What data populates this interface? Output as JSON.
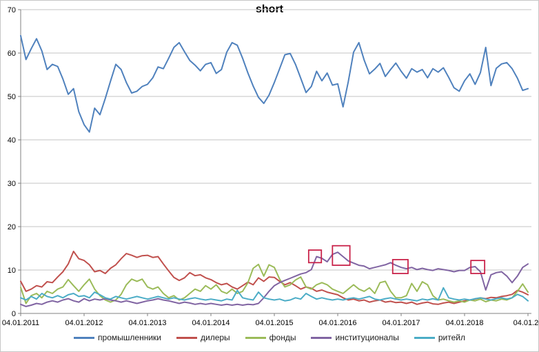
{
  "chart_data": {
    "type": "line",
    "title": "short",
    "xlabel": "",
    "ylabel": "",
    "ylim": [
      0,
      70
    ],
    "y_tick_step": 10,
    "y_tick_labels": [
      "0",
      "10",
      "20",
      "30",
      "40",
      "50",
      "60",
      "70"
    ],
    "x_tick_labels": [
      "04.01.2011",
      "04.01.2012",
      "04.01.2013",
      "04.01.2014",
      "04.01.2015",
      "04.01.2016",
      "04.01.2017",
      "04.01.2018",
      "04.01.20"
    ],
    "grid": "horizontal",
    "legend_position": "bottom",
    "colors": {
      "axis": "#808080",
      "grid": "#c3c3c3",
      "annotation": "#c9234a",
      "text": "#000000"
    },
    "months_span": 96,
    "series": [
      {
        "id": "promyshlenniki",
        "name": "промышленники",
        "color": "#4F81BD",
        "values": [
          64,
          58.5,
          61,
          63.3,
          60.5,
          56.2,
          57.4,
          56.9,
          54,
          50.5,
          51.8,
          46.5,
          43.5,
          41.8,
          47.3,
          45.8,
          49.5,
          53.5,
          57.4,
          56.2,
          53.2,
          50.8,
          51.2,
          52.3,
          52.8,
          54.3,
          56.8,
          56.4,
          58.8,
          61.3,
          62.4,
          60.3,
          58.3,
          57.2,
          55.9,
          57.4,
          57.8,
          55.3,
          56.2,
          60.2,
          62.4,
          61.8,
          58.8,
          55.4,
          52.4,
          49.8,
          48.4,
          50.3,
          53.2,
          56.4,
          59.6,
          59.9,
          57.4,
          54.2,
          50.9,
          52.3,
          55.8,
          53.6,
          55.4,
          52.6,
          52.9,
          47.6,
          53.4,
          60.2,
          62.4,
          58.4,
          55.2,
          56.3,
          57.6,
          54.6,
          56.2,
          57.7,
          55.8,
          54.2,
          56.4,
          55.6,
          56.2,
          54.3,
          56.4,
          55.6,
          56.6,
          54.4,
          52,
          51.2,
          53.6,
          55.2,
          52.8,
          55.5,
          61.3,
          52.5,
          56.5,
          57.5,
          57.8,
          56.4,
          54.2,
          51.4,
          51.8
        ]
      },
      {
        "id": "dilery",
        "name": "дилеры",
        "color": "#C0504D",
        "values": [
          7.4,
          5.1,
          5.6,
          6.4,
          6.1,
          7.3,
          7.1,
          8.4,
          9.6,
          11.4,
          14.3,
          12.6,
          12.2,
          11.2,
          9.6,
          9.9,
          9.2,
          10.4,
          11.2,
          12.6,
          13.8,
          13.4,
          12.9,
          13.3,
          13.4,
          12.9,
          13.1,
          11.4,
          9.8,
          8.3,
          7.6,
          8.2,
          9.4,
          8.7,
          8.9,
          8.2,
          7.8,
          7.1,
          6.6,
          6.9,
          6.1,
          5.6,
          6.4,
          7.2,
          6.6,
          8.2,
          7.4,
          8.4,
          8.3,
          7.4,
          6.6,
          7.1,
          6.4,
          5.6,
          6.1,
          5.8,
          5.1,
          5.4,
          4.9,
          4.6,
          4.3,
          3.6,
          3.1,
          3.3,
          2.9,
          3.1,
          2.6,
          2.9,
          3.1,
          2.6,
          2.8,
          2.5,
          2.6,
          2.3,
          2.6,
          2.1,
          2.4,
          2.6,
          2.2,
          2.1,
          2.4,
          2.6,
          2.3,
          2.6,
          2.9,
          3.1,
          3.3,
          3.6,
          3.4,
          3.7,
          3.6,
          3.9,
          4.1,
          4.4,
          5.3,
          4.9,
          4.3
        ]
      },
      {
        "id": "fondy",
        "name": "фонды",
        "color": "#9BBB59",
        "values": [
          6,
          2.3,
          4.1,
          4.6,
          3.6,
          5.1,
          4.6,
          5.6,
          6.1,
          7.8,
          6.4,
          5.1,
          6.6,
          7.9,
          5.6,
          4.1,
          3.1,
          2.6,
          3.1,
          4.4,
          6.6,
          7.9,
          7.4,
          7.9,
          6.1,
          5.6,
          6.1,
          4.6,
          3.6,
          4.1,
          3.1,
          3.6,
          4.6,
          5.6,
          5.1,
          6.4,
          5.6,
          6.6,
          5.1,
          4.6,
          5.6,
          4.6,
          5.1,
          7.1,
          10.4,
          11.3,
          8.6,
          11.2,
          10.6,
          7.9,
          6.1,
          6.6,
          7.7,
          8.4,
          6.1,
          5.6,
          6.6,
          7.1,
          6.6,
          5.6,
          5.1,
          4.6,
          5.6,
          6.6,
          5.6,
          5.1,
          5.9,
          4.6,
          7.1,
          7.4,
          5.1,
          3.6,
          3.6,
          4.1,
          6.9,
          5.1,
          7.3,
          6.6,
          4.1,
          3.1,
          3.3,
          2.9,
          2.6,
          2.9,
          2.6,
          3.1,
          2.9,
          3.3,
          2.7,
          3.1,
          2.9,
          3.3,
          3.1,
          3.6,
          5.1,
          6.8,
          4.9
        ]
      },
      {
        "id": "institutsionaly",
        "name": "институционалы",
        "color": "#8064A2",
        "values": [
          2.1,
          1.6,
          1.9,
          2.3,
          2.1,
          2.6,
          2.9,
          2.6,
          3.1,
          3.4,
          2.9,
          2.6,
          3.4,
          2.9,
          3.3,
          3.1,
          3.4,
          3.1,
          2.9,
          2.6,
          2.9,
          2.6,
          2.3,
          2.6,
          2.9,
          3.1,
          3.4,
          3.1,
          2.9,
          2.6,
          2.3,
          2.6,
          2.4,
          2.1,
          2.3,
          2.1,
          2.3,
          2.1,
          1.9,
          2.1,
          1.9,
          2.1,
          1.9,
          2.1,
          2,
          2.3,
          3.6,
          5.1,
          6.4,
          7.1,
          7.6,
          8.1,
          8.6,
          9.1,
          9.4,
          10.1,
          13.1,
          12.7,
          11.9,
          13.6,
          14.1,
          13.1,
          12.1,
          11.6,
          11.1,
          10.9,
          10.3,
          10.6,
          10.9,
          11.2,
          11.7,
          11.1,
          10.6,
          10.3,
          10.6,
          10.1,
          10.4,
          10.1,
          9.9,
          10.3,
          10.1,
          9.9,
          9.6,
          9.9,
          9.9,
          10.6,
          10.8,
          9.6,
          5.4,
          8.9,
          9.4,
          9.6,
          8.6,
          7.1,
          8.6,
          10.6,
          11.4
        ]
      },
      {
        "id": "riteyl",
        "name": "ритейл",
        "color": "#4BACC6",
        "values": [
          3.6,
          3.1,
          3.9,
          3.3,
          4.6,
          3.9,
          3.6,
          4.1,
          3.6,
          4.3,
          4.6,
          3.9,
          4.1,
          3.6,
          4.9,
          4.3,
          3.6,
          3.3,
          3.9,
          3.6,
          3.3,
          3.6,
          3.9,
          3.6,
          3.3,
          3.6,
          3.9,
          3.6,
          3.3,
          3.6,
          3.3,
          3.1,
          3.4,
          3.6,
          3.3,
          3.1,
          3.3,
          3.1,
          2.9,
          3.3,
          3.1,
          5.3,
          3.6,
          3.3,
          3.1,
          4.9,
          3.6,
          3.3,
          3.1,
          3.3,
          2.9,
          3.1,
          3.6,
          3.3,
          4.6,
          3.9,
          3.3,
          3.6,
          3.3,
          3.1,
          3.3,
          3.1,
          3.4,
          3.6,
          3.3,
          3.6,
          3.9,
          3.3,
          3.1,
          3.4,
          3.6,
          3.3,
          3.1,
          3.3,
          3.1,
          2.9,
          3.3,
          3.1,
          3.4,
          3.1,
          5.9,
          3.6,
          3.3,
          3.1,
          3.3,
          3.1,
          3.4,
          3.6,
          3.3,
          3.1,
          3.4,
          3.6,
          3.3,
          3.6,
          4.4,
          3.9,
          2.9
        ]
      }
    ],
    "annotations": [
      {
        "type": "rect",
        "x0_month": 54.5,
        "x1_month": 56.9,
        "v0": 11.7,
        "v1": 14.6
      },
      {
        "type": "rect",
        "x0_month": 59.0,
        "x1_month": 62.3,
        "v0": 11.1,
        "v1": 15.6
      },
      {
        "type": "rect",
        "x0_month": 70.4,
        "x1_month": 73.3,
        "v0": 9.2,
        "v1": 12.4
      },
      {
        "type": "rect",
        "x0_month": 85.2,
        "x1_month": 87.8,
        "v0": 9.2,
        "v1": 12.2
      }
    ]
  }
}
